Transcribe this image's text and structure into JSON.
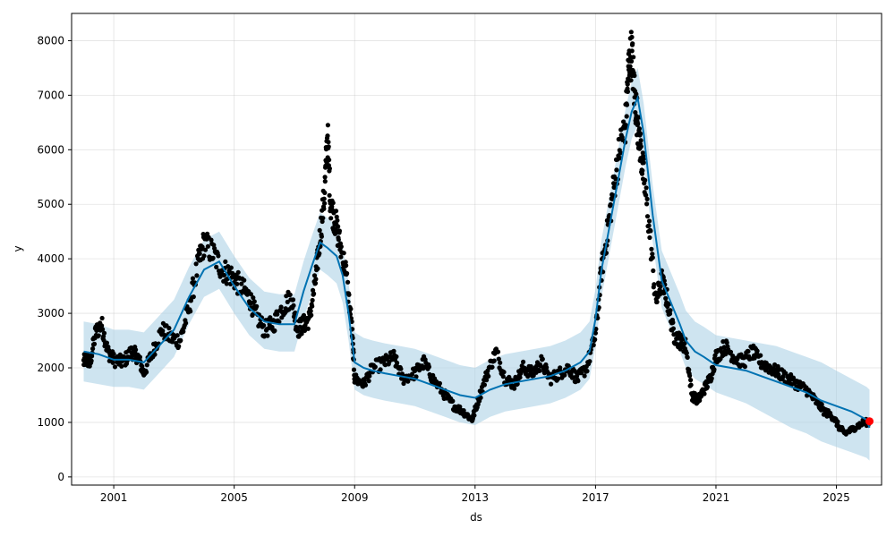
{
  "chart_data": {
    "type": "line",
    "xlabel": "ds",
    "ylabel": "y",
    "xlim": [
      1999.6,
      2026.5
    ],
    "ylim": [
      -150,
      8500
    ],
    "grid": true,
    "x_ticks": [
      {
        "value": 2001,
        "label": "2001"
      },
      {
        "value": 2005,
        "label": "2005"
      },
      {
        "value": 2009,
        "label": "2009"
      },
      {
        "value": 2013,
        "label": "2013"
      },
      {
        "value": 2017,
        "label": "2017"
      },
      {
        "value": 2021,
        "label": "2021"
      },
      {
        "value": 2025,
        "label": "2025"
      }
    ],
    "y_ticks": [
      0,
      1000,
      2000,
      3000,
      4000,
      5000,
      6000,
      7000,
      8000
    ],
    "colors": {
      "observed": "#000000",
      "forecast": "#0072B2",
      "interval": "#A6CEE3",
      "highlight": "#FF0000"
    },
    "observed_anchors": {
      "x": [
        2000.0,
        2000.1,
        2000.2,
        2000.4,
        2000.6,
        2000.8,
        2001.0,
        2001.3,
        2001.6,
        2001.8,
        2002.0,
        2002.3,
        2002.6,
        2002.9,
        2003.2,
        2003.5,
        2003.8,
        2004.0,
        2004.3,
        2004.6,
        2004.9,
        2005.2,
        2005.5,
        2005.7,
        2006.0,
        2006.3,
        2006.6,
        2006.9,
        2007.1,
        2007.3,
        2007.5,
        2007.7,
        2007.85,
        2008.0,
        2008.1,
        2008.2,
        2008.35,
        2008.5,
        2008.7,
        2008.9,
        2009.0,
        2009.3,
        2009.6,
        2010.0,
        2010.3,
        2010.6,
        2011.0,
        2011.3,
        2011.6,
        2012.0,
        2012.3,
        2012.6,
        2012.9,
        2013.1,
        2013.4,
        2013.7,
        2014.0,
        2014.3,
        2014.6,
        2014.9,
        2015.2,
        2015.5,
        2015.8,
        2016.1,
        2016.4,
        2016.7,
        2017.0,
        2017.2,
        2017.4,
        2017.6,
        2017.8,
        2018.0,
        2018.1,
        2018.2,
        2018.3,
        2018.4,
        2018.5,
        2018.6,
        2018.8,
        2019.0,
        2019.2,
        2019.4,
        2019.6,
        2019.8,
        2020.0,
        2020.2,
        2020.4,
        2020.6,
        2020.8,
        2021.0,
        2021.3,
        2021.6,
        2021.9,
        2022.2,
        2022.5,
        2022.8,
        2023.1,
        2023.4,
        2023.7,
        2024.0,
        2024.3,
        2024.6,
        2024.9,
        2025.1,
        2025.3,
        2025.6,
        2025.9,
        2026.1
      ],
      "y": [
        2100,
        2200,
        2050,
        2650,
        2800,
        2300,
        2150,
        2100,
        2300,
        2200,
        1900,
        2300,
        2700,
        2550,
        2500,
        3100,
        3900,
        4300,
        4100,
        3800,
        3700,
        3500,
        3300,
        3000,
        2700,
        2800,
        3100,
        3300,
        2700,
        2800,
        2900,
        3600,
        4400,
        5200,
        6300,
        5000,
        4700,
        4300,
        3800,
        2800,
        1800,
        1700,
        2000,
        2100,
        2200,
        1800,
        1900,
        2100,
        1800,
        1500,
        1300,
        1200,
        1050,
        1400,
        1900,
        2300,
        1800,
        1700,
        2000,
        1900,
        2100,
        1800,
        1900,
        2000,
        1800,
        2000,
        2600,
        3800,
        4500,
        5300,
        6000,
        6500,
        7500,
        7800,
        7000,
        6500,
        6000,
        5500,
        4500,
        3200,
        3600,
        3200,
        2600,
        2500,
        2400,
        1500,
        1400,
        1600,
        1800,
        2200,
        2400,
        2200,
        2100,
        2300,
        2100,
        2000,
        1900,
        1800,
        1700,
        1600,
        1400,
        1200,
        1100,
        900,
        800,
        900,
        1000,
        1000
      ]
    },
    "highlight_point": {
      "x": 2026.1,
      "y": 1020
    },
    "forecast": {
      "x": [
        2000.0,
        2000.5,
        2001.0,
        2001.5,
        2002.0,
        2002.5,
        2003.0,
        2003.5,
        2004.0,
        2004.5,
        2005.0,
        2005.5,
        2006.0,
        2006.5,
        2007.0,
        2007.3,
        2007.6,
        2007.85,
        2008.1,
        2008.4,
        2008.6,
        2008.8,
        2009.0,
        2009.3,
        2009.6,
        2010.0,
        2010.5,
        2011.0,
        2011.5,
        2012.0,
        2012.5,
        2013.0,
        2013.5,
        2014.0,
        2014.5,
        2015.0,
        2015.5,
        2016.0,
        2016.5,
        2016.8,
        2017.0,
        2017.2,
        2017.5,
        2017.8,
        2018.0,
        2018.2,
        2018.4,
        2018.6,
        2018.9,
        2019.2,
        2019.5,
        2019.8,
        2020.0,
        2020.3,
        2020.6,
        2021.0,
        2021.5,
        2022.0,
        2022.5,
        2023.0,
        2023.5,
        2024.0,
        2024.5,
        2025.0,
        2025.5,
        2026.0,
        2026.1
      ],
      "y": [
        2300,
        2250,
        2150,
        2150,
        2100,
        2400,
        2700,
        3300,
        3800,
        3950,
        3500,
        3100,
        2850,
        2800,
        2800,
        3400,
        3900,
        4300,
        4200,
        4050,
        3700,
        3000,
        2100,
        2000,
        1950,
        1900,
        1850,
        1800,
        1700,
        1600,
        1500,
        1450,
        1600,
        1700,
        1750,
        1800,
        1850,
        1950,
        2100,
        2300,
        2900,
        3800,
        4700,
        5600,
        6200,
        6700,
        6950,
        6300,
        4800,
        3600,
        3200,
        2800,
        2500,
        2300,
        2200,
        2050,
        2000,
        1950,
        1850,
        1750,
        1650,
        1550,
        1400,
        1300,
        1200,
        1050,
        900
      ],
      "lower": [
        1750,
        1700,
        1650,
        1650,
        1600,
        1900,
        2200,
        2800,
        3300,
        3450,
        3000,
        2600,
        2350,
        2300,
        2300,
        2900,
        3400,
        3800,
        3700,
        3550,
        3200,
        2500,
        1600,
        1500,
        1450,
        1400,
        1350,
        1300,
        1200,
        1100,
        1000,
        950,
        1100,
        1200,
        1250,
        1300,
        1350,
        1450,
        1600,
        1800,
        2400,
        3300,
        4200,
        5100,
        5700,
        6200,
        6450,
        5800,
        4300,
        3100,
        2700,
        2300,
        2000,
        1800,
        1700,
        1550,
        1450,
        1350,
        1200,
        1050,
        900,
        800,
        650,
        550,
        450,
        350,
        300
      ],
      "upper": [
        2850,
        2800,
        2700,
        2700,
        2650,
        2950,
        3250,
        3850,
        4350,
        4500,
        4050,
        3650,
        3400,
        3350,
        3350,
        3950,
        4450,
        4850,
        4750,
        4600,
        4250,
        3550,
        2650,
        2550,
        2500,
        2450,
        2400,
        2350,
        2250,
        2150,
        2050,
        2000,
        2150,
        2250,
        2300,
        2350,
        2400,
        2500,
        2650,
        2850,
        3450,
        4350,
        5250,
        6150,
        6750,
        7250,
        7500,
        6850,
        5350,
        4150,
        3750,
        3350,
        3050,
        2850,
        2750,
        2600,
        2550,
        2500,
        2450,
        2400,
        2300,
        2200,
        2100,
        1950,
        1800,
        1650,
        1600
      ]
    }
  }
}
